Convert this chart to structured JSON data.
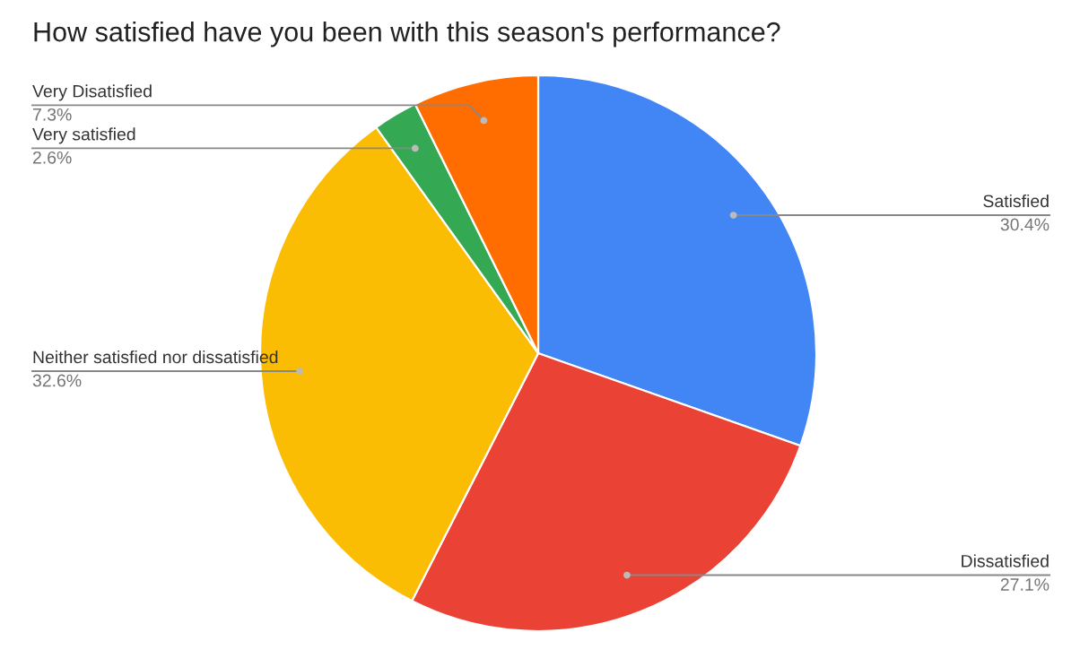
{
  "chart_data": {
    "type": "pie",
    "title": "How satisfied have you been with this season's performance?",
    "categories": [
      "Satisfied",
      "Dissatisfied",
      "Neither satisfied nor dissatisfied",
      "Very satisfied",
      "Very Disatisfied"
    ],
    "values": [
      30.4,
      27.1,
      32.6,
      2.6,
      7.3
    ],
    "colors": [
      "#4285f4",
      "#ea4335",
      "#fbbc04",
      "#34a853",
      "#ff6d01"
    ],
    "value_labels": [
      "30.4%",
      "27.1%",
      "32.6%",
      "2.6%",
      "7.3%"
    ],
    "legend": false
  }
}
